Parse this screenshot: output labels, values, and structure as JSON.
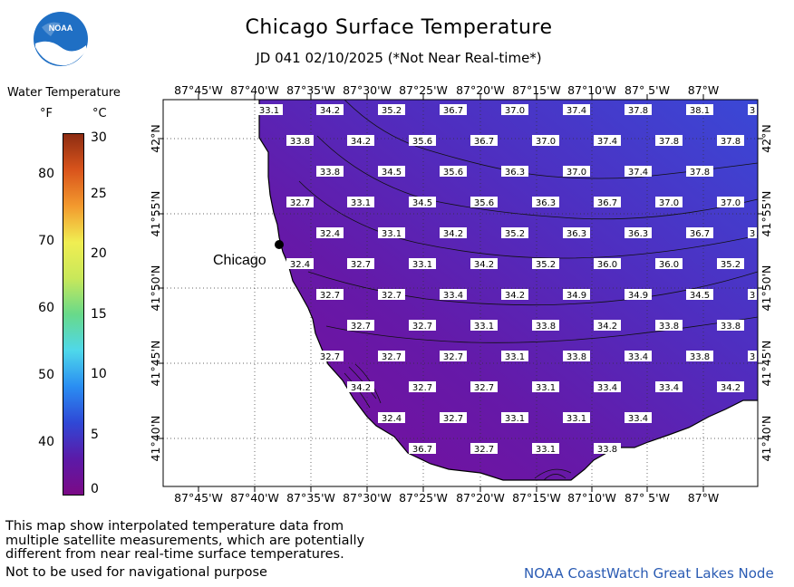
{
  "header": {
    "title": "Chicago Surface Temperature",
    "subtitle": "JD 041 02/10/2025 (*Not Near Real-time*)"
  },
  "logo": {
    "text": "NOAA"
  },
  "legend": {
    "title": "Water Temperature",
    "unit_f": "°F",
    "unit_c": "°C",
    "f_ticks": [
      "80",
      "70",
      "60",
      "50",
      "40"
    ],
    "c_ticks": [
      "30",
      "25",
      "20",
      "15",
      "10",
      "5",
      "0"
    ]
  },
  "map": {
    "lon_labels": [
      "87°45'W",
      "87°40'W",
      "87°35'W",
      "87°30'W",
      "87°25'W",
      "87°20'W",
      "87°15'W",
      "87°10'W",
      "87° 5'W",
      "87°W"
    ],
    "lat_labels": [
      "42°N",
      "41°55'N",
      "41°50'N",
      "41°45'N",
      "41°40'N"
    ],
    "city": "Chicago",
    "temperatures": [
      [
        "33.1",
        "34.2",
        "35.2",
        "36.7",
        "37.0",
        "37.4",
        "37.8",
        "38.1",
        "3"
      ],
      [
        "33.8",
        "34.2",
        "35.6",
        "36.7",
        "37.0",
        "37.4",
        "37.8",
        "37.8"
      ],
      [
        "33.8",
        "34.5",
        "35.6",
        "36.3",
        "37.0",
        "37.4",
        "37.8"
      ],
      [
        "32.7",
        "33.1",
        "34.5",
        "35.6",
        "36.3",
        "36.7",
        "37.0",
        "37.0"
      ],
      [
        "32.4",
        "33.1",
        "34.2",
        "35.2",
        "36.3",
        "36.3",
        "36.7",
        "3"
      ],
      [
        "32.4",
        "32.7",
        "33.1",
        "34.2",
        "35.2",
        "36.0",
        "36.0",
        "35.2"
      ],
      [
        "32.7",
        "32.7",
        "33.4",
        "34.2",
        "34.9",
        "34.9",
        "34.5",
        "3"
      ],
      [
        "32.7",
        "32.7",
        "33.1",
        "33.8",
        "34.2",
        "33.8",
        "33.8"
      ],
      [
        "32.7",
        "32.7",
        "32.7",
        "33.1",
        "33.8",
        "33.4",
        "33.8",
        "3"
      ],
      [
        "34.2",
        "32.7",
        "32.7",
        "33.1",
        "33.4",
        "33.4",
        "34.2"
      ],
      [
        "32.4",
        "32.7",
        "33.1",
        "33.1",
        "33.4"
      ],
      [
        "36.7",
        "32.7",
        "33.1",
        "33.8"
      ]
    ]
  },
  "footer": {
    "note": "This map show interpolated temperature data from\nmultiple satellite measurements, which are potentially\ndifferent from near real-time surface temperatures.",
    "nav_warning": "Not to be used for navigational purpose",
    "credit": "NOAA CoastWatch Great Lakes Node"
  }
}
